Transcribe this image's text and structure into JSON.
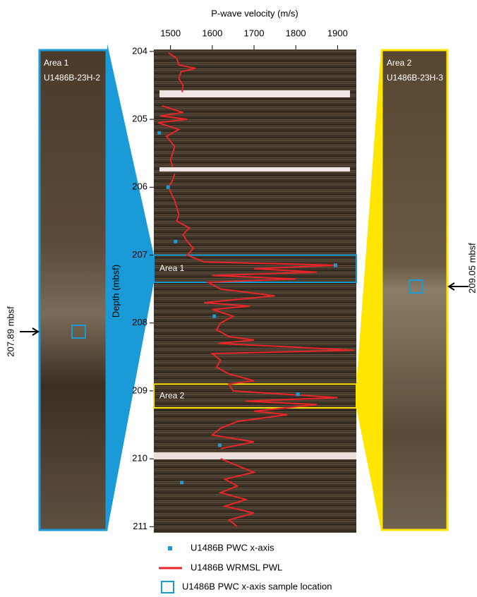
{
  "chart_data": {
    "type": "scatter-line",
    "xlabel": "P-wave velocity (m/s)",
    "ylabel": "Depth (mbsf)",
    "xlim": [
      1460,
      1945
    ],
    "xticks": [
      1500,
      1600,
      1700,
      1800,
      1900
    ],
    "ylim": [
      203.97,
      211.09
    ],
    "yticks": [
      204,
      205,
      206,
      207,
      208,
      209,
      210,
      211
    ],
    "series": [
      {
        "name": "U1486B PWC x-axis",
        "type": "scatter",
        "color": "#1a9ad6",
        "x": [
          1473,
          1494,
          1512,
          1895,
          1605,
          1805,
          1618,
          1527
        ],
        "y": [
          205.2,
          206.0,
          206.8,
          207.15,
          207.9,
          209.05,
          209.8,
          210.35
        ]
      },
      {
        "name": "U1486B WRMSL PWL",
        "type": "line",
        "color": "#e8262a",
        "x": [
          1495,
          1515,
          1520,
          1560,
          1525,
          1520,
          1530,
          1528,
          null,
          1480,
          1530,
          1475,
          1540,
          1470,
          1520,
          1490,
          1510,
          1505,
          1500,
          1505,
          null,
          1510,
          1505,
          1495,
          1510,
          1520,
          1515,
          1545,
          1530,
          1540,
          1555,
          1540,
          1580,
          1900,
          1700,
          1850,
          1600,
          1800,
          1590,
          1620,
          1750,
          1580,
          1690,
          1600,
          1650,
          1620,
          1610,
          1640,
          1700,
          1615,
          1940,
          1600,
          1620,
          1610,
          1640,
          1700,
          1640,
          1650,
          1900,
          1680,
          1850,
          1700,
          1780,
          1660,
          1620,
          1600,
          1700,
          1620,
          null,
          1620,
          1660,
          1700,
          1630,
          1660,
          1620,
          1680,
          1630,
          1700,
          1640,
          1660
        ],
        "y": [
          204.02,
          204.1,
          204.2,
          204.25,
          204.3,
          204.4,
          204.5,
          204.6,
          null,
          204.8,
          204.9,
          204.95,
          205.0,
          205.05,
          205.15,
          205.25,
          205.4,
          205.5,
          205.6,
          205.7,
          null,
          205.8,
          205.9,
          206.0,
          206.2,
          206.4,
          206.5,
          206.6,
          206.7,
          206.8,
          206.9,
          207.0,
          207.1,
          207.15,
          207.2,
          207.25,
          207.3,
          207.35,
          207.4,
          207.5,
          207.6,
          207.7,
          207.75,
          207.8,
          207.9,
          208.0,
          208.1,
          208.2,
          208.25,
          208.3,
          208.4,
          208.45,
          208.55,
          208.65,
          208.75,
          208.85,
          208.9,
          209.0,
          209.1,
          209.15,
          209.2,
          209.3,
          209.35,
          209.45,
          209.55,
          209.65,
          209.75,
          209.85,
          null,
          210.0,
          210.1,
          210.2,
          210.3,
          210.4,
          210.5,
          210.6,
          210.7,
          210.8,
          210.9,
          211.0
        ]
      }
    ],
    "sample_legend": "U1486B PWC x-axis sample location",
    "areas": [
      {
        "label": "Area 1",
        "section": "U1486B-23H-2",
        "ylim": [
          207.0,
          207.4
        ],
        "sample_label": "207.89 mbsf",
        "color": "#1a9ad6"
      },
      {
        "label": "Area 2",
        "section": "U1486B-23H-3",
        "ylim": [
          208.9,
          209.25
        ],
        "sample_label": "209.05 mbsf",
        "color": "#ffe600"
      }
    ]
  }
}
